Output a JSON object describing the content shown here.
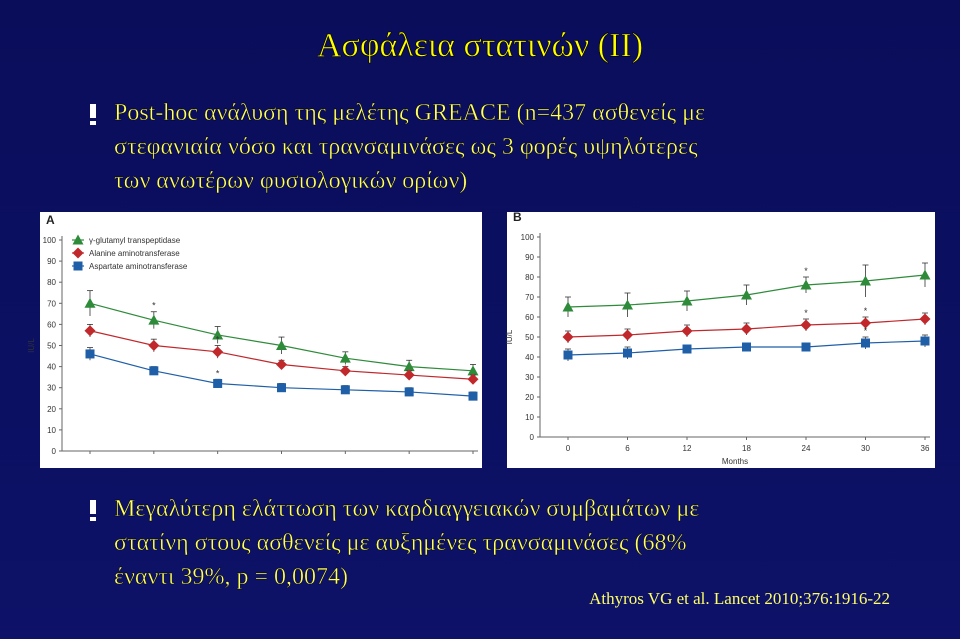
{
  "slide": {
    "title": "Ασφάλεια στατινών (ΙΙ)",
    "bullets": [
      {
        "lines": [
          "Post-hoc ανάλυση της μελέτης GREACE (n=437 ασθενείς με",
          "στεφανιαία νόσο και τρανσαμινάσες ως 3 φορές υψηλότερες",
          "των ανωτέρων φυσιολογικών ορίων)"
        ]
      },
      {
        "lines": [
          "Μεγαλύτερη ελάττωση των καρδιαγγειακών συμβαμάτων με",
          "στατίνη στους ασθενείς με αυξημένες τρανσαμινάσες (68%",
          "έναντι 39%, p = 0,0074)"
        ]
      }
    ],
    "citation": "Athyros VG et al. Lancet 2010;376:1916-22"
  },
  "chart_data": [
    {
      "type": "line",
      "panel": "A",
      "ylabel": "IU/L",
      "legend": "upper left",
      "categories": [
        null,
        null,
        null,
        null,
        null,
        null,
        null
      ],
      "ylim": [
        0,
        100
      ],
      "yticks": [
        0,
        10,
        20,
        30,
        40,
        50,
        60,
        70,
        80,
        90,
        100
      ],
      "series": [
        {
          "name": "γ-glutamyl transpeptidase",
          "color": "#2e8b3a",
          "marker": "triangle",
          "values": [
            70,
            62,
            55,
            50,
            44,
            40,
            38
          ],
          "errors": [
            6,
            4,
            4,
            4,
            3,
            3,
            3
          ],
          "flags": [
            null,
            "*",
            null,
            null,
            null,
            null,
            null
          ]
        },
        {
          "name": "Alanine aminotransferase",
          "color": "#c0282c",
          "marker": "diamond",
          "values": [
            57,
            50,
            47,
            41,
            38,
            36,
            34
          ],
          "errors": [
            3,
            3,
            3,
            2,
            2,
            2,
            2
          ],
          "flags": [
            null,
            null,
            "*",
            null,
            null,
            null,
            null
          ]
        },
        {
          "name": "Aspartate aminotransferase",
          "color": "#1f5fa8",
          "marker": "square",
          "values": [
            46,
            38,
            32,
            30,
            29,
            28,
            26
          ],
          "errors": [
            3,
            2,
            2,
            2,
            2,
            2,
            2
          ],
          "flags": [
            null,
            null,
            "*",
            null,
            null,
            null,
            null
          ]
        }
      ]
    },
    {
      "type": "line",
      "panel": "B",
      "ylabel": "IU/L",
      "xlabel": "Months",
      "x": [
        0,
        6,
        12,
        18,
        24,
        30,
        36
      ],
      "xlim": [
        0,
        36
      ],
      "xticks": [
        0,
        6,
        12,
        18,
        24,
        30,
        36
      ],
      "ylim": [
        0,
        100
      ],
      "yticks": [
        0,
        10,
        20,
        30,
        40,
        50,
        60,
        70,
        80,
        90,
        100
      ],
      "series": [
        {
          "color": "#2e8b3a",
          "marker": "triangle",
          "values": [
            65,
            66,
            68,
            71,
            76,
            78,
            81
          ],
          "errors": [
            5,
            6,
            5,
            5,
            4,
            8,
            6
          ],
          "flags": [
            null,
            null,
            null,
            null,
            "*",
            null,
            null
          ]
        },
        {
          "color": "#c0282c",
          "marker": "diamond",
          "values": [
            50,
            51,
            53,
            54,
            56,
            57,
            59
          ],
          "errors": [
            3,
            3,
            3,
            3,
            3,
            3,
            3
          ],
          "flags": [
            null,
            null,
            null,
            null,
            "*",
            "*",
            null
          ]
        },
        {
          "color": "#1f5fa8",
          "marker": "square",
          "values": [
            41,
            42,
            44,
            45,
            45,
            47,
            48
          ],
          "errors": [
            3,
            3,
            2,
            2,
            2,
            3,
            3
          ],
          "flags": [
            null,
            null,
            null,
            null,
            null,
            "*",
            null
          ]
        }
      ]
    }
  ]
}
